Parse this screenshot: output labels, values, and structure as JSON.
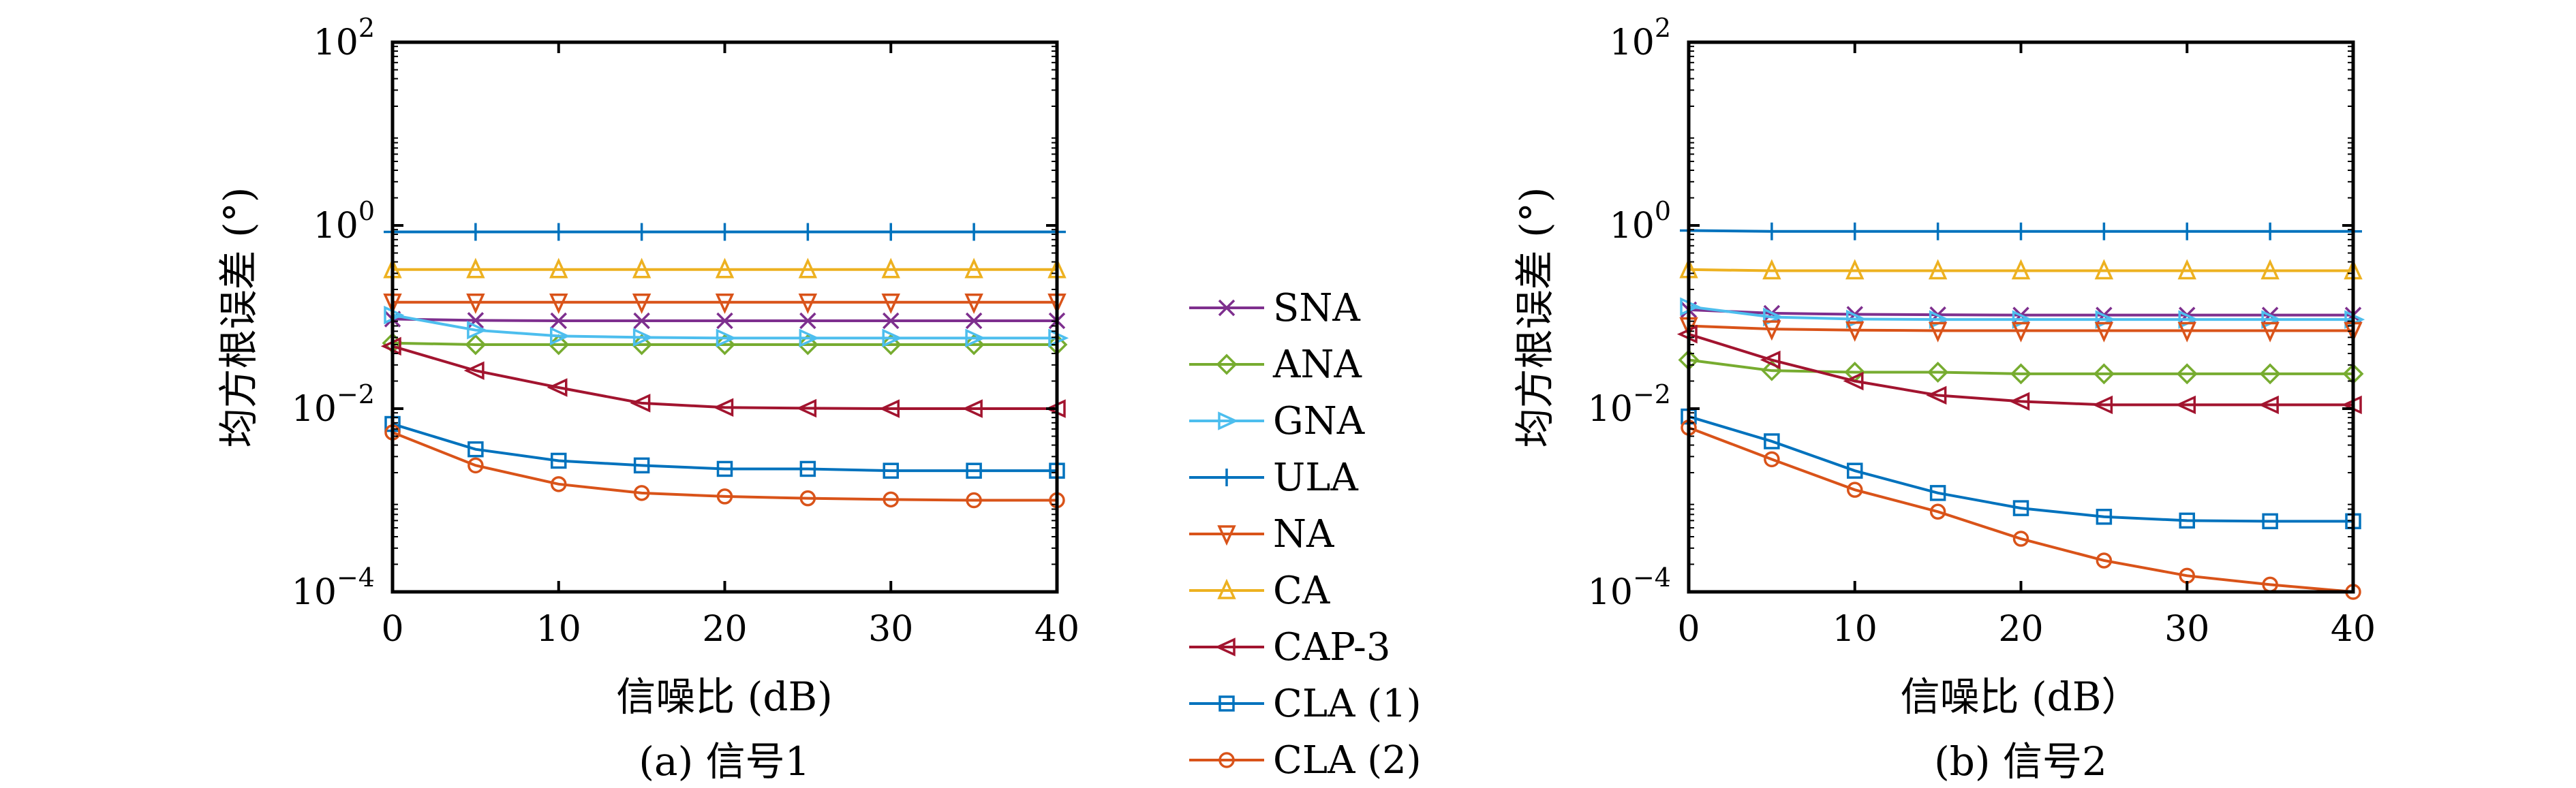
{
  "colors": {
    "SNA": "#7E2F8E",
    "ANA": "#77AC30",
    "GNA": "#4DBEEE",
    "ULA": "#0072BD",
    "NA": "#D95319",
    "CA": "#EDB120",
    "CAP-3": "#A2142F",
    "CLA (1)": "#0072BD",
    "CLA (2)": "#D95319"
  },
  "legend": {
    "entries": [
      "SNA",
      "ANA",
      "GNA",
      "ULA",
      "NA",
      "CA",
      "CAP-3",
      "CLA (1)",
      "CLA (2)"
    ],
    "markers": [
      "x",
      "diamond",
      "triangle-right",
      "plus",
      "triangle-down",
      "triangle-up",
      "triangle-left",
      "square",
      "circle"
    ]
  },
  "chart_data": [
    {
      "type": "line",
      "caption": "(a) 信号1",
      "xlabel": "信噪比 (dB)",
      "ylabel": "均方根误差 (°)",
      "yscale": "log",
      "xlim": [
        0,
        40
      ],
      "ylim": [
        0.0001,
        100
      ],
      "x_ticks": [
        "0",
        "10",
        "20",
        "30",
        "40"
      ],
      "y_ticks": [
        {
          "base": "10",
          "exp": "−4"
        },
        {
          "base": "10",
          "exp": "−2"
        },
        {
          "base": "10",
          "exp": "0"
        },
        {
          "base": "10",
          "exp": "2"
        }
      ],
      "x": [
        0,
        5,
        10,
        15,
        20,
        25,
        30,
        35,
        40
      ],
      "series": [
        {
          "name": "SNA",
          "values": [
            0.095,
            0.092,
            0.091,
            0.091,
            0.091,
            0.091,
            0.091,
            0.091,
            0.091
          ]
        },
        {
          "name": "ANA",
          "values": [
            0.052,
            0.05,
            0.05,
            0.05,
            0.05,
            0.05,
            0.05,
            0.05,
            0.05
          ]
        },
        {
          "name": "GNA",
          "values": [
            0.105,
            0.072,
            0.062,
            0.06,
            0.059,
            0.059,
            0.059,
            0.059,
            0.059
          ]
        },
        {
          "name": "ULA",
          "values": [
            0.85,
            0.85,
            0.85,
            0.85,
            0.85,
            0.85,
            0.85,
            0.85,
            0.85
          ]
        },
        {
          "name": "NA",
          "values": [
            0.145,
            0.145,
            0.145,
            0.145,
            0.145,
            0.145,
            0.145,
            0.145,
            0.145
          ]
        },
        {
          "name": "CA",
          "values": [
            0.33,
            0.33,
            0.33,
            0.33,
            0.33,
            0.33,
            0.33,
            0.33,
            0.33
          ]
        },
        {
          "name": "CAP-3",
          "values": [
            0.048,
            0.026,
            0.017,
            0.0115,
            0.0103,
            0.0101,
            0.01,
            0.01,
            0.01
          ]
        },
        {
          "name": "CLA (1)",
          "values": [
            0.0068,
            0.0036,
            0.0027,
            0.0024,
            0.0022,
            0.0022,
            0.0021,
            0.0021,
            0.0021
          ]
        },
        {
          "name": "CLA (2)",
          "values": [
            0.0055,
            0.0024,
            0.0015,
            0.0012,
            0.0011,
            0.00105,
            0.00102,
            0.001,
            0.001
          ]
        }
      ]
    },
    {
      "type": "line",
      "caption": "(b) 信号2",
      "xlabel": "信噪比 (dB）",
      "ylabel": "均方根误差 (°)",
      "yscale": "log",
      "xlim": [
        0,
        40
      ],
      "ylim": [
        0.0001,
        100
      ],
      "x_ticks": [
        "0",
        "10",
        "20",
        "30",
        "40"
      ],
      "y_ticks": [
        {
          "base": "10",
          "exp": "−4"
        },
        {
          "base": "10",
          "exp": "−2"
        },
        {
          "base": "10",
          "exp": "0"
        },
        {
          "base": "10",
          "exp": "2"
        }
      ],
      "x": [
        0,
        5,
        10,
        15,
        20,
        25,
        30,
        35,
        40
      ],
      "series": [
        {
          "name": "SNA",
          "values": [
            0.12,
            0.11,
            0.107,
            0.106,
            0.105,
            0.105,
            0.105,
            0.105,
            0.105
          ]
        },
        {
          "name": "ANA",
          "values": [
            0.034,
            0.026,
            0.025,
            0.025,
            0.024,
            0.024,
            0.024,
            0.024,
            0.024
          ]
        },
        {
          "name": "GNA",
          "values": [
            0.13,
            0.1,
            0.095,
            0.094,
            0.094,
            0.094,
            0.094,
            0.094,
            0.094
          ]
        },
        {
          "name": "ULA",
          "values": [
            0.88,
            0.86,
            0.86,
            0.86,
            0.86,
            0.86,
            0.86,
            0.86,
            0.86
          ]
        },
        {
          "name": "NA",
          "values": [
            0.08,
            0.074,
            0.072,
            0.071,
            0.071,
            0.071,
            0.071,
            0.071,
            0.071
          ]
        },
        {
          "name": "CA",
          "values": [
            0.33,
            0.32,
            0.32,
            0.32,
            0.32,
            0.32,
            0.32,
            0.32,
            0.32
          ]
        },
        {
          "name": "CAP-3",
          "values": [
            0.065,
            0.034,
            0.02,
            0.014,
            0.012,
            0.011,
            0.011,
            0.011,
            0.011
          ]
        },
        {
          "name": "CLA (1)",
          "values": [
            0.0082,
            0.0044,
            0.0021,
            0.0012,
            0.00082,
            0.00066,
            0.0006,
            0.00059,
            0.00059
          ]
        },
        {
          "name": "CLA (2)",
          "values": [
            0.0062,
            0.0028,
            0.0013,
            0.00075,
            0.00038,
            0.00022,
            0.00015,
            0.00012,
            0.0001
          ]
        }
      ]
    }
  ]
}
